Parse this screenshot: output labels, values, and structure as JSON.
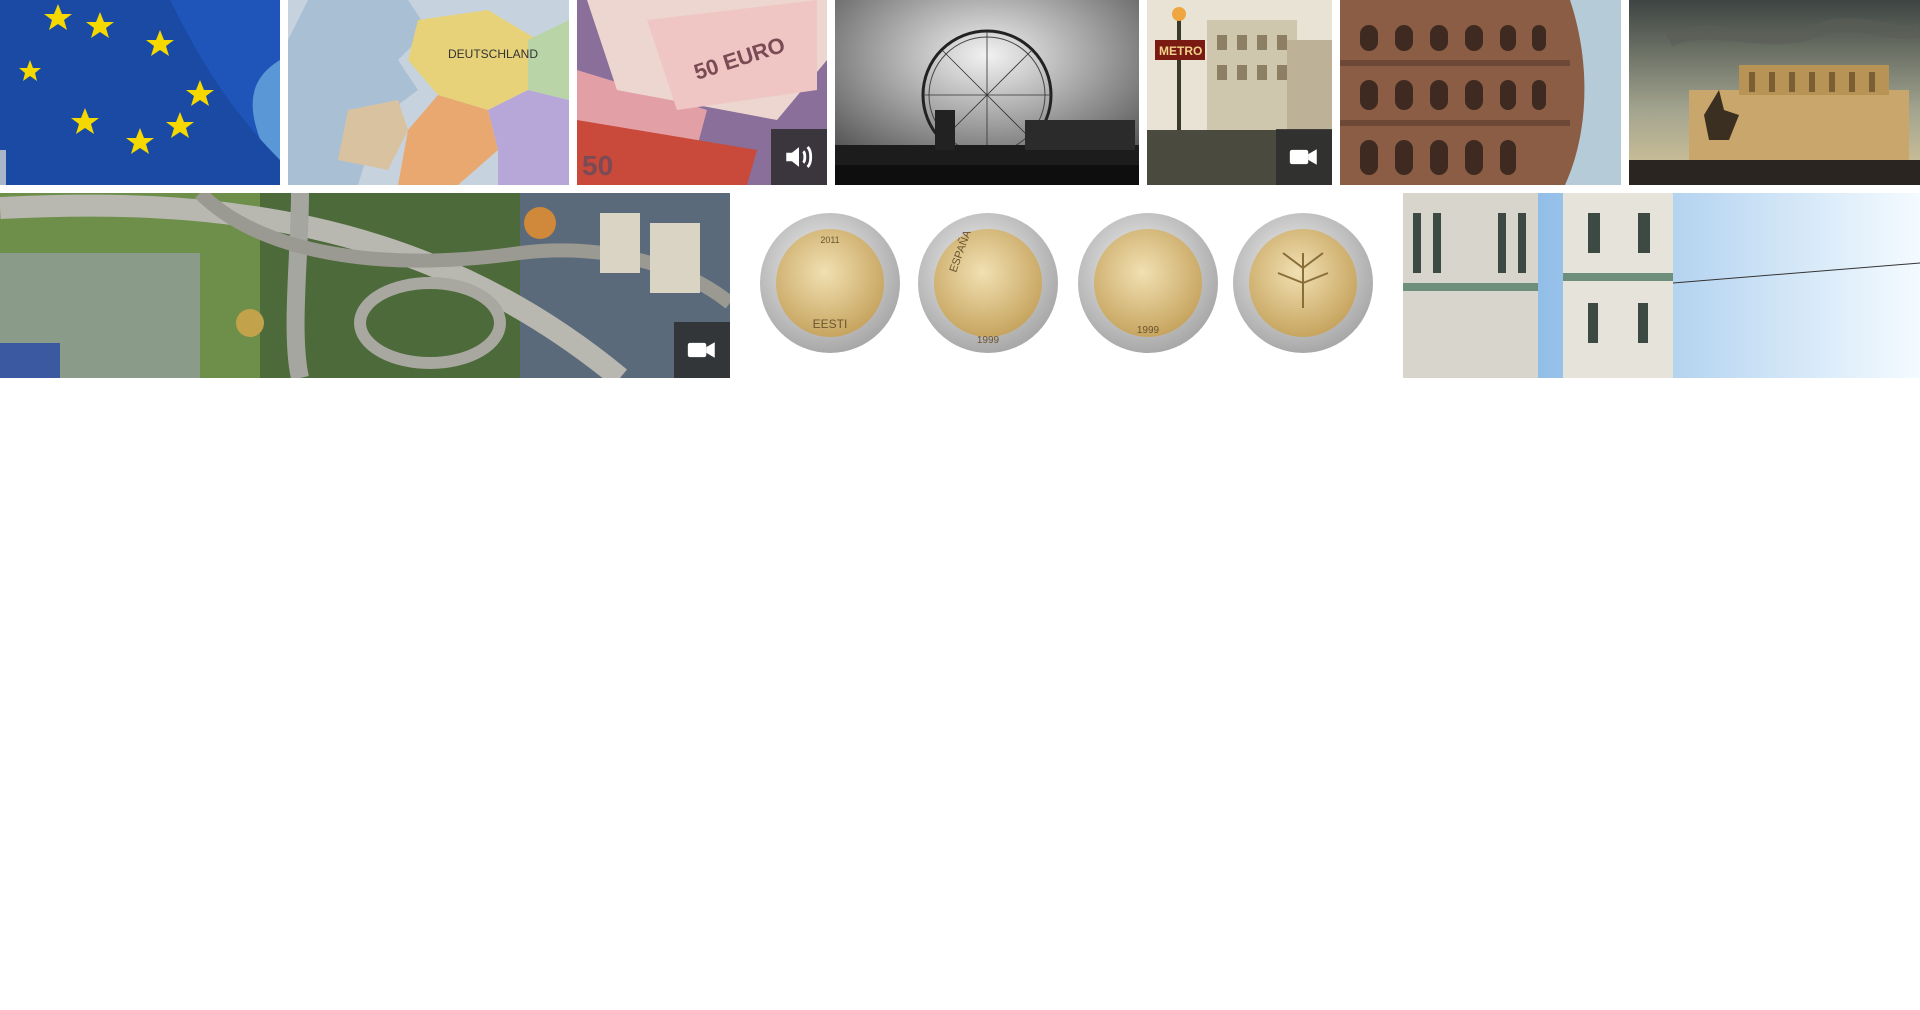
{
  "gallery": {
    "rows": [
      {
        "tiles": [
          {
            "name": "eu-flag",
            "subject": "European Union flag waving against the sky",
            "badge": null
          },
          {
            "name": "europe-map",
            "subject": "Map of Europe",
            "map_label": "DEUTSCHLAND",
            "badge": null
          },
          {
            "name": "euro-banknotes",
            "subject": "Euro banknotes",
            "note_label": "50 EURO",
            "badge": "audio"
          },
          {
            "name": "london-eye",
            "subject": "London Eye, black and white",
            "badge": null
          },
          {
            "name": "paris-metro",
            "subject": "Paris metro entrance",
            "sign_label": "METRO",
            "badge": "video"
          },
          {
            "name": "colosseum",
            "subject": "Colosseum, Rome",
            "badge": null
          },
          {
            "name": "vittoriano",
            "subject": "Altare della Patria, Rome",
            "badge": null
          }
        ]
      },
      {
        "tiles": [
          {
            "name": "aerial-highway",
            "subject": "Aerial view of highway interchange",
            "badge": "video"
          },
          {
            "name": "euro-coins",
            "subject": "Two euro coins",
            "coin_labels": [
              "EESTI",
              "ESPAÑA",
              "",
              ""
            ],
            "coin_years": [
              "2011",
              "1999",
              "1999",
              ""
            ],
            "badge": null
          },
          {
            "name": "florence-cathedral",
            "subject": "Florence Cathedral bell tower",
            "badge": null
          }
        ]
      }
    ]
  },
  "badges": {
    "audio": "speaker-icon",
    "video": "video-camera-icon"
  },
  "colors": {
    "badge_bg": "#2d2d2d",
    "eu_blue": "#1f55b8",
    "eu_star": "#f4d800",
    "coin_gold": "#d8bd7a",
    "coin_silver": "#c9c9c9"
  }
}
